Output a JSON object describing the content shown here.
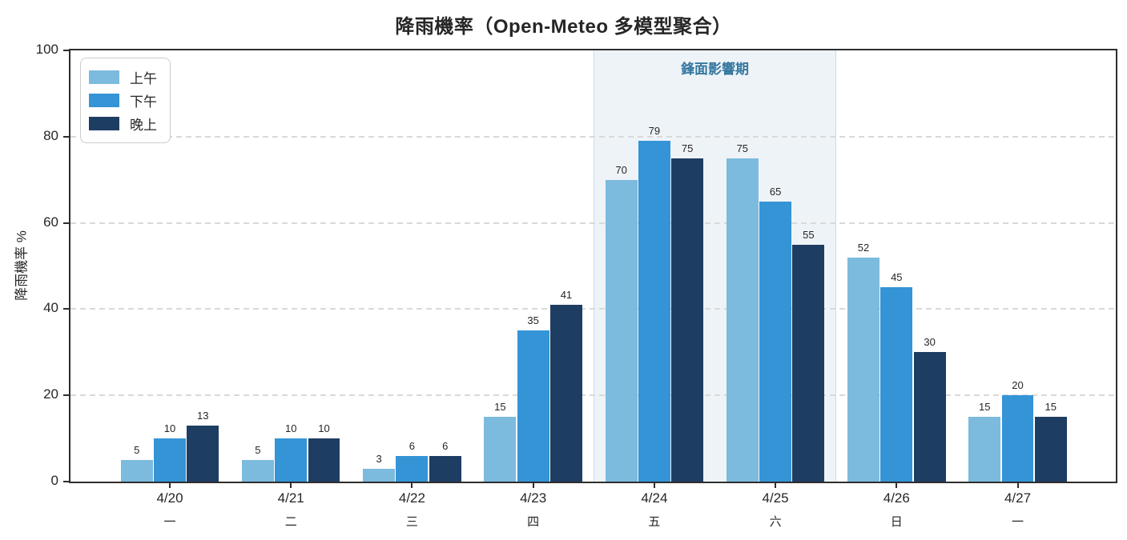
{
  "chart_data": {
    "type": "bar",
    "title": "降雨機率（Open-Meteo 多模型聚合）",
    "ylabel": "降雨機率 %",
    "xlabel": "",
    "ylim": [
      0,
      100
    ],
    "yticks": [
      0,
      20,
      40,
      60,
      80,
      100
    ],
    "grid": "horizontal-dashed",
    "legend_position": "upper-left",
    "categories": [
      "4/20",
      "4/21",
      "4/22",
      "4/23",
      "4/24",
      "4/25",
      "4/26",
      "4/27"
    ],
    "weekday_labels": [
      "一",
      "二",
      "三",
      "四",
      "五",
      "六",
      "日",
      "一"
    ],
    "series": [
      {
        "name": "上午",
        "color": "#7cbade",
        "values": [
          5,
          5,
          3,
          15,
          70,
          75,
          52,
          15
        ]
      },
      {
        "name": "下午",
        "color": "#3494d6",
        "values": [
          10,
          10,
          6,
          35,
          79,
          65,
          45,
          20
        ]
      },
      {
        "name": "晚上",
        "color": "#1e3d63",
        "values": [
          13,
          10,
          6,
          41,
          75,
          55,
          30,
          15
        ]
      }
    ],
    "bar_value_labels": true,
    "annotation_band": {
      "label": "鋒面影響期",
      "x_start": 3.5,
      "x_end": 5.5,
      "fill_color": "#eef3f8",
      "edge_color": "#ccdcea",
      "label_color": "#35789f"
    },
    "xlim": [
      -0.82,
      7.81
    ],
    "bar_width": 0.264,
    "bar_offset": 0.273,
    "axis_color": "#2e2e2e",
    "grid_color": "#d9d9d9",
    "text_color": "#262626"
  }
}
